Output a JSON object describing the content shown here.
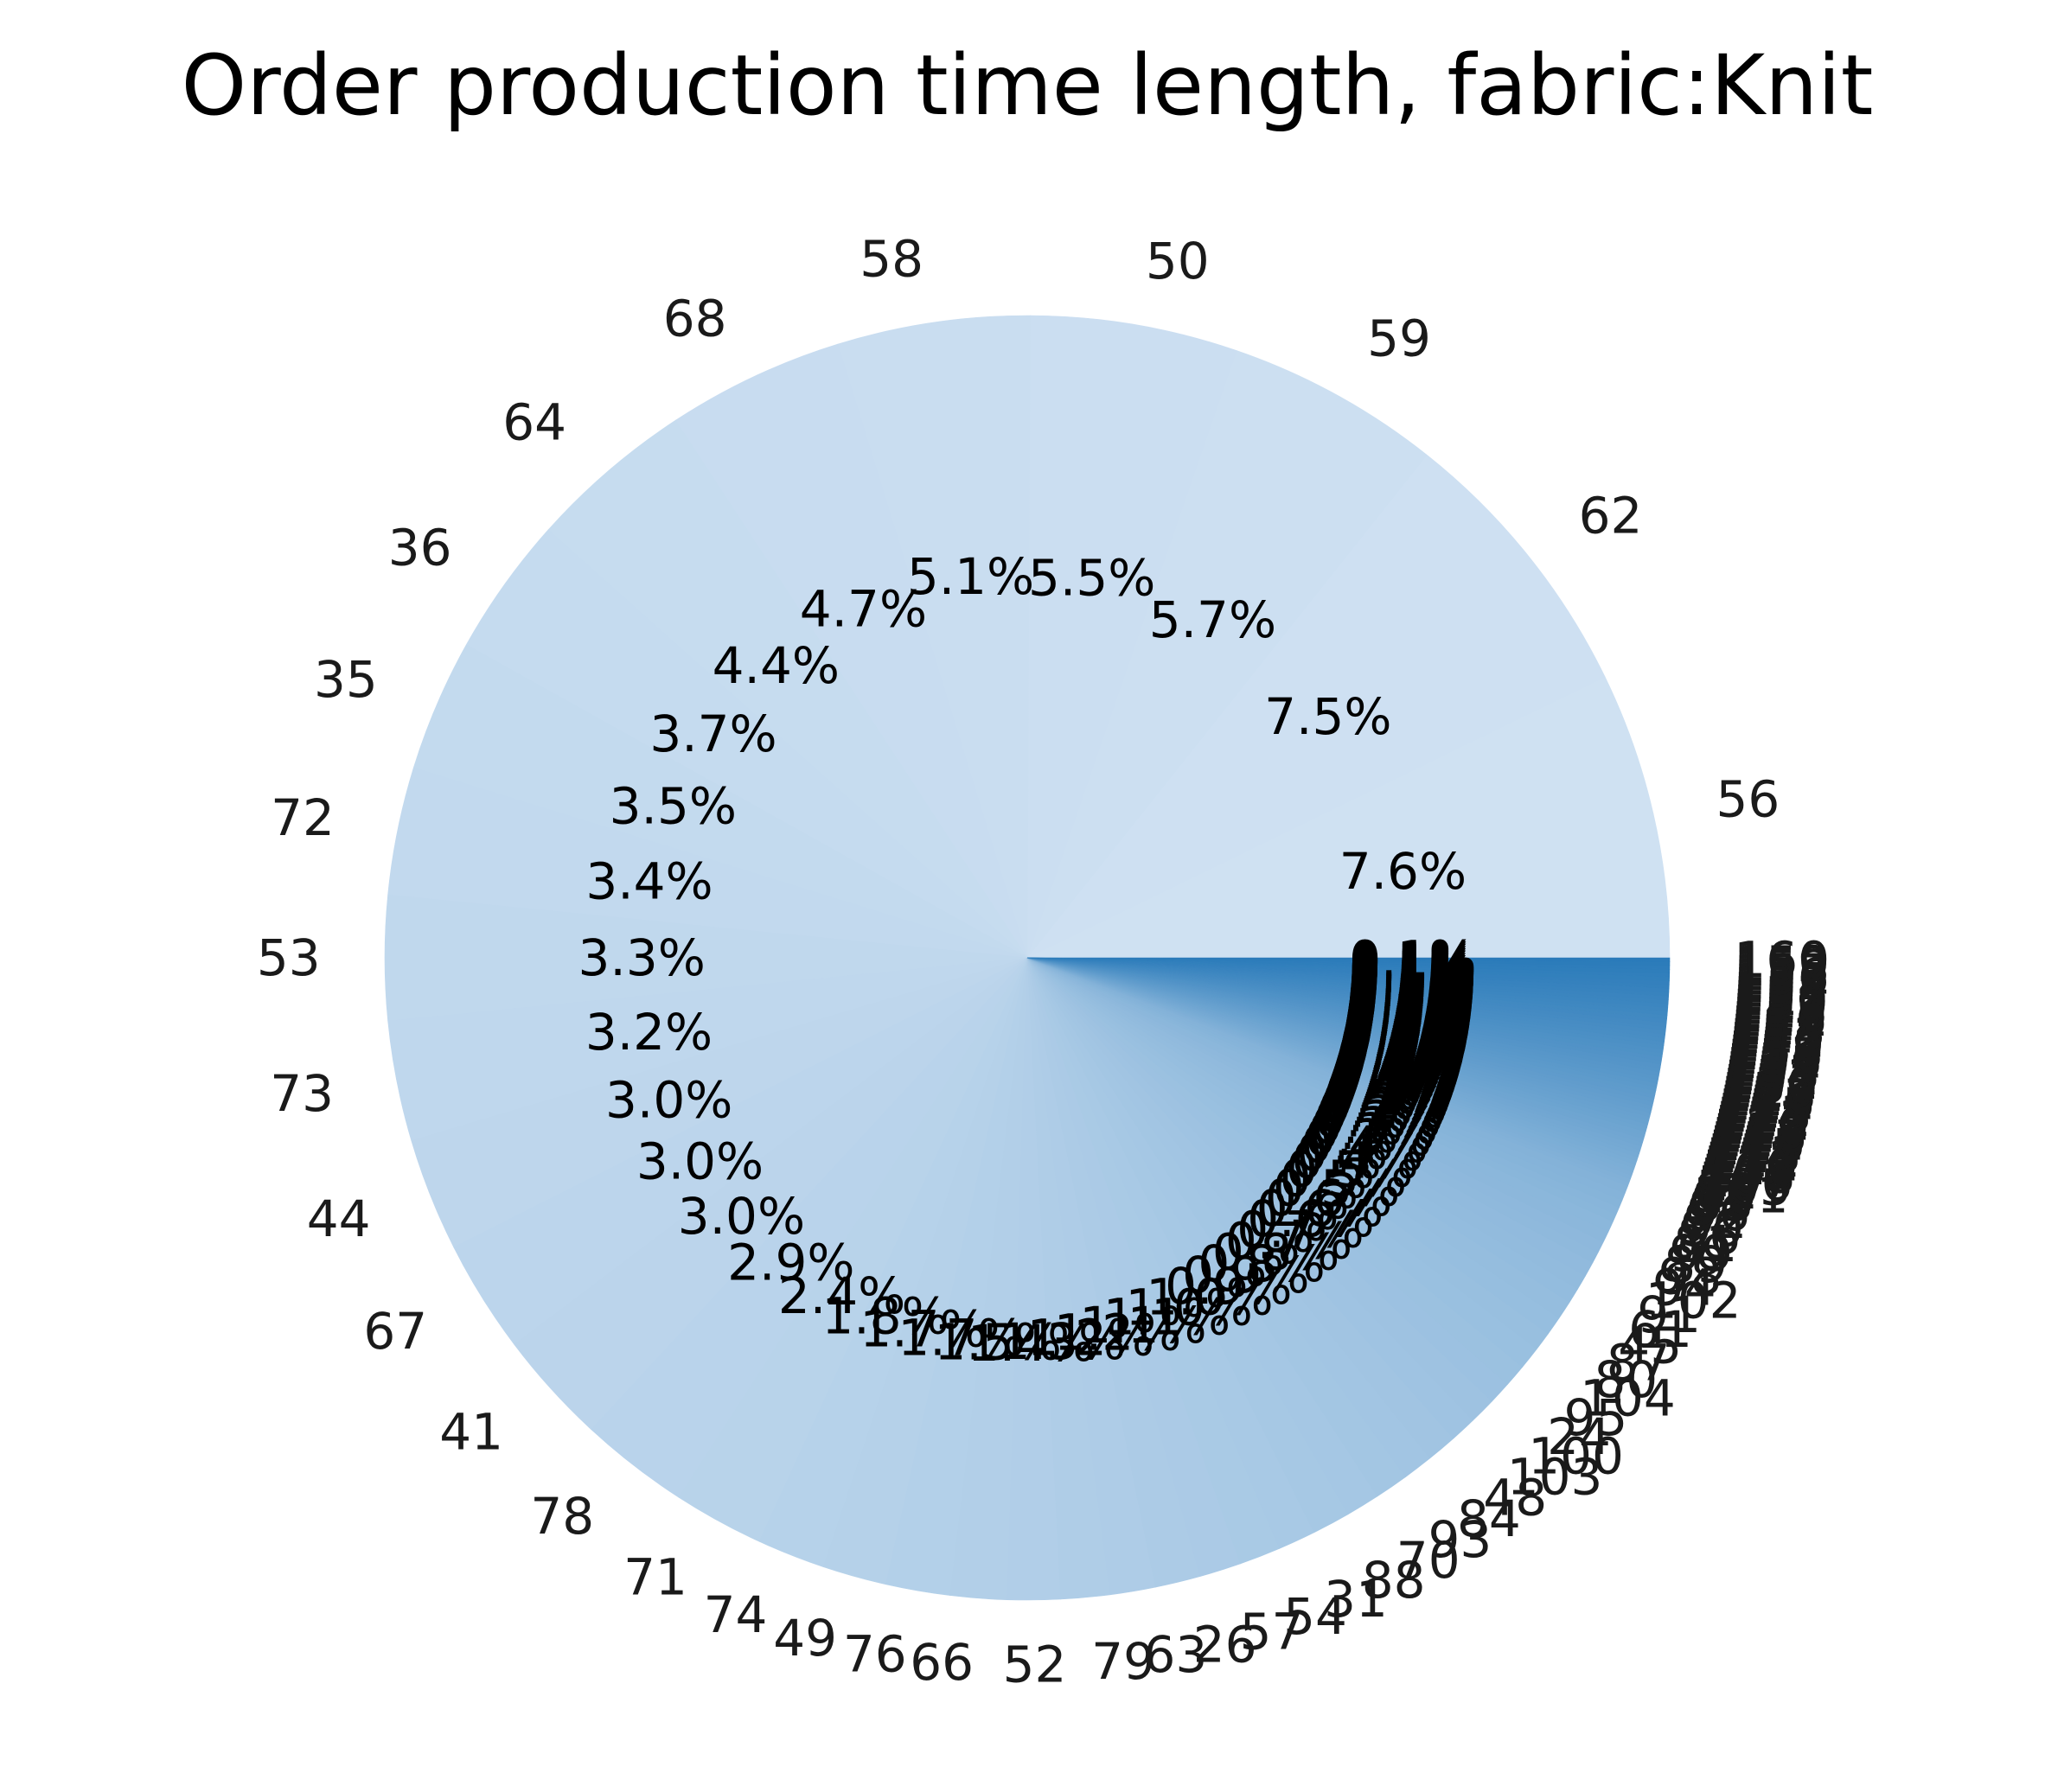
{
  "chart_data": {
    "type": "pie",
    "title": "Order production time length, fabric:Knit",
    "start_angle_deg": 0,
    "direction": "counterclockwise",
    "color_scale": {
      "from": "#cfe1f2",
      "to": "#2b7bba"
    },
    "slices": [
      {
        "label": "56",
        "pct": 7.6,
        "pct_label": "7.6%"
      },
      {
        "label": "62",
        "pct": 7.5,
        "pct_label": "7.5%"
      },
      {
        "label": "59",
        "pct": 5.7,
        "pct_label": "5.7%"
      },
      {
        "label": "50",
        "pct": 5.5,
        "pct_label": "5.5%"
      },
      {
        "label": "58",
        "pct": 5.1,
        "pct_label": "5.1%"
      },
      {
        "label": "68",
        "pct": 4.7,
        "pct_label": "4.7%"
      },
      {
        "label": "64",
        "pct": 4.4,
        "pct_label": "4.4%"
      },
      {
        "label": "36",
        "pct": 3.7,
        "pct_label": "3.7%"
      },
      {
        "label": "35",
        "pct": 3.5,
        "pct_label": "3.5%"
      },
      {
        "label": "72",
        "pct": 3.4,
        "pct_label": "3.4%"
      },
      {
        "label": "53",
        "pct": 3.3,
        "pct_label": "3.3%"
      },
      {
        "label": "73",
        "pct": 3.2,
        "pct_label": "3.2%"
      },
      {
        "label": "44",
        "pct": 3.0,
        "pct_label": "3.0%"
      },
      {
        "label": "67",
        "pct": 3.0,
        "pct_label": "3.0%"
      },
      {
        "label": "41",
        "pct": 3.0,
        "pct_label": "3.0%"
      },
      {
        "label": "78",
        "pct": 2.9,
        "pct_label": "2.9%"
      },
      {
        "label": "71",
        "pct": 2.4,
        "pct_label": "2.4%"
      },
      {
        "label": "74",
        "pct": 1.8,
        "pct_label": "1.8%"
      },
      {
        "label": "49",
        "pct": 1.7,
        "pct_label": "1.7%"
      },
      {
        "label": "76",
        "pct": 1.7,
        "pct_label": "1.7%"
      },
      {
        "label": "66",
        "pct": 1.5,
        "pct_label": "1.5%"
      },
      {
        "label": "52",
        "pct": 1.4,
        "pct_label": "1.4%"
      },
      {
        "label": "79",
        "pct": 1.3,
        "pct_label": "1.3%"
      },
      {
        "label": "63",
        "pct": 1.2,
        "pct_label": "1.2%"
      },
      {
        "label": "26",
        "pct": 1.2,
        "pct_label": "1.2%"
      },
      {
        "label": "57",
        "pct": 1.1,
        "pct_label": "1.1%"
      },
      {
        "label": "54",
        "pct": 1.1,
        "pct_label": "1.1%"
      },
      {
        "label": "31",
        "pct": 1.0,
        "pct_label": "1.0%"
      },
      {
        "label": "88",
        "pct": 1.0,
        "pct_label": "1.0%"
      },
      {
        "label": "70",
        "pct": 0.9,
        "pct_label": "0.9%"
      },
      {
        "label": "93",
        "pct": 0.9,
        "pct_label": "0.9%"
      },
      {
        "label": "84",
        "pct": 0.8,
        "pct_label": "0.8%"
      },
      {
        "label": "48",
        "pct": 0.8,
        "pct_label": "0.8%"
      },
      {
        "label": "103",
        "pct": 0.7,
        "pct_label": "0.7%"
      },
      {
        "label": "100",
        "pct": 0.7,
        "pct_label": "0.7%"
      },
      {
        "label": "24",
        "pct": 0.6,
        "pct_label": "0.6%"
      },
      {
        "label": "95",
        "pct": 0.6,
        "pct_label": "0.6%"
      },
      {
        "label": "104",
        "pct": 0.6,
        "pct_label": "0.6%"
      },
      {
        "label": "80",
        "pct": 0.5,
        "pct_label": "0.5%"
      },
      {
        "label": "87",
        "pct": 0.5,
        "pct_label": "0.5%"
      },
      {
        "label": "45",
        "pct": 0.5,
        "pct_label": "0.5%"
      },
      {
        "label": "61",
        "pct": 0.4,
        "pct_label": "0.4%"
      },
      {
        "label": "91",
        "pct": 0.4,
        "pct_label": "0.4%"
      },
      {
        "label": "102",
        "pct": 0.4,
        "pct_label": "0.4%"
      },
      {
        "label": "94",
        "pct": 0.3,
        "pct_label": "0.3%"
      },
      {
        "label": "98",
        "pct": 0.3,
        "pct_label": "0.3%"
      },
      {
        "label": "89",
        "pct": 0.3,
        "pct_label": "0.3%"
      },
      {
        "label": "99",
        "pct": 0.3,
        "pct_label": "0.3%"
      },
      {
        "label": "81",
        "pct": 0.2,
        "pct_label": "0.2%"
      },
      {
        "label": "86",
        "pct": 0.2,
        "pct_label": "0.2%"
      },
      {
        "label": "90",
        "pct": 0.2,
        "pct_label": "0.2%"
      },
      {
        "label": "92",
        "pct": 0.2,
        "pct_label": "0.2%"
      },
      {
        "label": "96",
        "pct": 0.2,
        "pct_label": "0.2%"
      },
      {
        "label": "97",
        "pct": 0.1,
        "pct_label": "0.1%"
      },
      {
        "label": "83",
        "pct": 0.1,
        "pct_label": "0.1%"
      },
      {
        "label": "85",
        "pct": 0.1,
        "pct_label": "0.1%"
      },
      {
        "label": "101",
        "pct": 0.1,
        "pct_label": "0.1%"
      },
      {
        "label": "82",
        "pct": 0.1,
        "pct_label": "0.1%"
      },
      {
        "label": "105",
        "pct": 0.1,
        "pct_label": "0.1%"
      },
      {
        "label": "106",
        "pct": 0.1,
        "pct_label": "0.1%"
      },
      {
        "label": "107",
        "pct": 0.1,
        "pct_label": "0.1%"
      },
      {
        "label": "108",
        "pct": 0.1,
        "pct_label": "0.1%"
      },
      {
        "label": "109",
        "pct": 0.1,
        "pct_label": "0.1%"
      },
      {
        "label": "110",
        "pct": 0.1,
        "pct_label": "0.1%"
      },
      {
        "label": "111",
        "pct": 0.1,
        "pct_label": "0.1%"
      },
      {
        "label": "112",
        "pct": 0.1,
        "pct_label": "0.1%"
      },
      {
        "label": "113",
        "pct": 0.1,
        "pct_label": "0.1%"
      },
      {
        "label": "114",
        "pct": 0.1,
        "pct_label": "0.1%"
      },
      {
        "label": "115",
        "pct": 0.1,
        "pct_label": "0.1%"
      },
      {
        "label": "116",
        "pct": 0.1,
        "pct_label": "0.1%"
      },
      {
        "label": "117",
        "pct": 0.1,
        "pct_label": "0.1%"
      },
      {
        "label": "118",
        "pct": 0.1,
        "pct_label": "0.1%"
      },
      {
        "label": "119",
        "pct": 0.1,
        "pct_label": "0.1%"
      },
      {
        "label": "120",
        "pct": 0.1,
        "pct_label": "0.1%"
      },
      {
        "label": "121",
        "pct": 0.1,
        "pct_label": "0.1%"
      },
      {
        "label": "122",
        "pct": 0.1,
        "pct_label": "0.1%"
      },
      {
        "label": "123",
        "pct": 0.1,
        "pct_label": "0.1%"
      },
      {
        "label": "124",
        "pct": 0.1,
        "pct_label": "0.1%"
      },
      {
        "label": "125",
        "pct": 0.1,
        "pct_label": "0.1%"
      },
      {
        "label": "126",
        "pct": 0.1,
        "pct_label": "0.1%"
      },
      {
        "label": "127",
        "pct": 0.1,
        "pct_label": "0.1%"
      },
      {
        "label": "128",
        "pct": 0.1,
        "pct_label": "0.1%"
      },
      {
        "label": "129",
        "pct": 0.1,
        "pct_label": "0.1%"
      },
      {
        "label": "130",
        "pct": 0.1,
        "pct_label": "0.1%"
      },
      {
        "label": "131",
        "pct": 0.1,
        "pct_label": "0.1%"
      },
      {
        "label": "132",
        "pct": 0.1,
        "pct_label": "0.1%"
      },
      {
        "label": "133",
        "pct": 0.1,
        "pct_label": "0.1%"
      },
      {
        "label": "134",
        "pct": 0.1,
        "pct_label": "0.1%"
      },
      {
        "label": "135",
        "pct": 0.1,
        "pct_label": "0.1%"
      },
      {
        "label": "136",
        "pct": 0.1,
        "pct_label": "0.1%"
      },
      {
        "label": "137",
        "pct": 0.1,
        "pct_label": "0.1%"
      },
      {
        "label": "138",
        "pct": 0.1,
        "pct_label": "0.1%"
      },
      {
        "label": "139",
        "pct": 0.1,
        "pct_label": "0.1%"
      },
      {
        "label": "140",
        "pct": 0.1,
        "pct_label": "0.1%"
      },
      {
        "label": "141",
        "pct": 0.1,
        "pct_label": "0.1%"
      },
      {
        "label": "142",
        "pct": 0.1,
        "pct_label": "0.1%"
      },
      {
        "label": "143",
        "pct": 0.1,
        "pct_label": "0.1%"
      },
      {
        "label": "144",
        "pct": 0.1,
        "pct_label": "0.1%"
      },
      {
        "label": "145",
        "pct": 0.1,
        "pct_label": "0.1%"
      },
      {
        "label": "146",
        "pct": 0.1,
        "pct_label": "0.1%"
      },
      {
        "label": "147",
        "pct": 0.1,
        "pct_label": "0.1%"
      },
      {
        "label": "148",
        "pct": 0.1,
        "pct_label": "0.1%"
      },
      {
        "label": "149",
        "pct": 0.1,
        "pct_label": "0.1%"
      },
      {
        "label": "150",
        "pct": 0.1,
        "pct_label": "0.1%"
      },
      {
        "label": "151",
        "pct": 0.1,
        "pct_label": "0.1%"
      },
      {
        "label": "152",
        "pct": 0.1,
        "pct_label": "0.1%"
      },
      {
        "label": "153",
        "pct": 0.1,
        "pct_label": "0.1%"
      },
      {
        "label": "154",
        "pct": 0.1,
        "pct_label": "0.1%"
      },
      {
        "label": "155",
        "pct": 0.1,
        "pct_label": "0.1%"
      },
      {
        "label": "156",
        "pct": 0.1,
        "pct_label": "0.1%"
      },
      {
        "label": "157",
        "pct": 0.1,
        "pct_label": "0.1%"
      },
      {
        "label": "158",
        "pct": 0.1,
        "pct_label": "0.1%"
      },
      {
        "label": "159",
        "pct": 0.1,
        "pct_label": "0.1%"
      },
      {
        "label": "160",
        "pct": 0.1,
        "pct_label": "0.1%"
      }
    ]
  }
}
